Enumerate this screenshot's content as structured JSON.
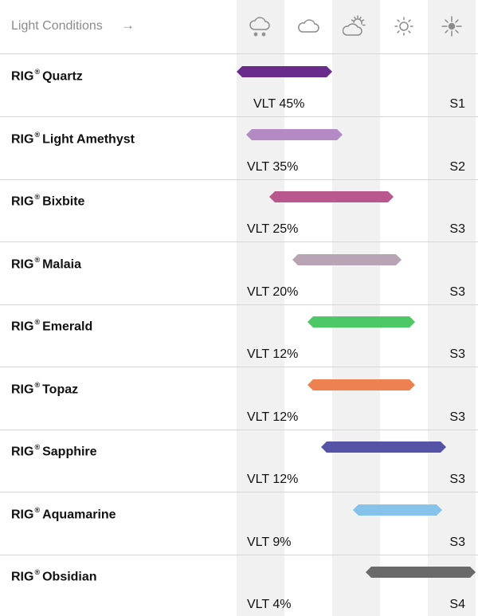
{
  "header": {
    "title": "Light Conditions",
    "arrow": "→",
    "icons": [
      "snow-cloud-icon",
      "cloud-icon",
      "partly-sunny-icon",
      "sun-icon",
      "bright-sun-icon"
    ]
  },
  "lenses": [
    {
      "brand": "RIG",
      "mark": "®",
      "name": "Quartz",
      "vlt": "VLT 45%",
      "category": "S1",
      "color": "#6a2c8a"
    },
    {
      "brand": "RIG",
      "mark": "®",
      "name": "Light Amethyst",
      "vlt": "VLT 35%",
      "category": "S2",
      "color": "#b48ac4"
    },
    {
      "brand": "RIG",
      "mark": "®",
      "name": "Bixbite",
      "vlt": "VLT 25%",
      "category": "S3",
      "color": "#b8588e"
    },
    {
      "brand": "RIG",
      "mark": "®",
      "name": "Malaia",
      "vlt": "VLT 20%",
      "category": "S3",
      "color": "#b9a4b6"
    },
    {
      "brand": "RIG",
      "mark": "®",
      "name": "Emerald",
      "vlt": "VLT 12%",
      "category": "S3",
      "color": "#4cc864"
    },
    {
      "brand": "RIG",
      "mark": "®",
      "name": "Topaz",
      "vlt": "VLT 12%",
      "category": "S3",
      "color": "#ee8150"
    },
    {
      "brand": "RIG",
      "mark": "®",
      "name": "Sapphire",
      "vlt": "VLT 12%",
      "category": "S3",
      "color": "#5453a6"
    },
    {
      "brand": "RIG",
      "mark": "®",
      "name": "Aquamarine",
      "vlt": "VLT 9%",
      "category": "S3",
      "color": "#86c3ea"
    },
    {
      "brand": "RIG",
      "mark": "®",
      "name": "Obsidian",
      "vlt": "VLT 4%",
      "category": "S4",
      "color": "#6a6a6a"
    }
  ]
}
